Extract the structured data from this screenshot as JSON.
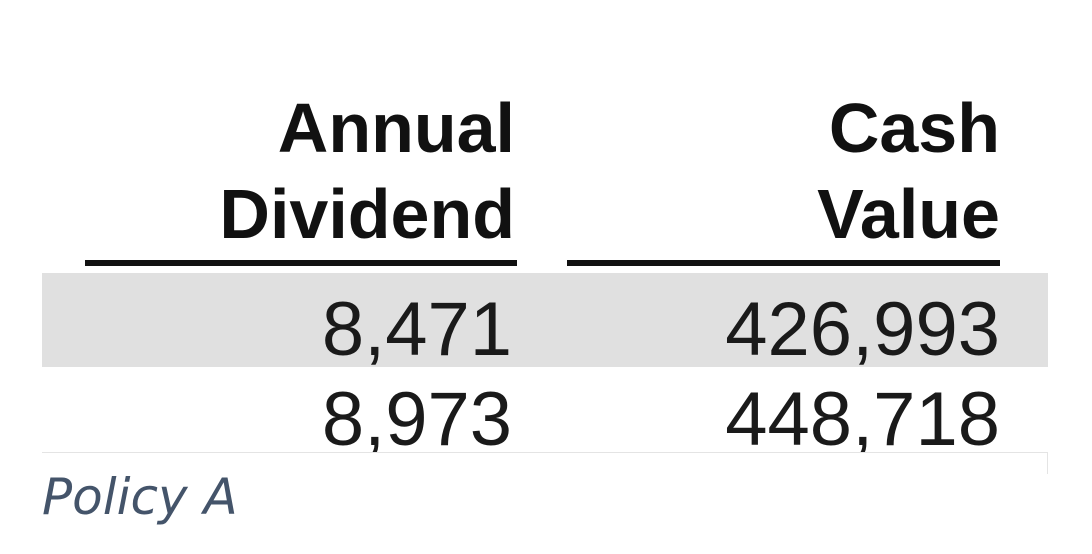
{
  "table": {
    "headers": [
      [
        "Annual",
        "Dividend"
      ],
      [
        "Cash",
        "Value"
      ]
    ],
    "rows": [
      [
        "8,471",
        "426,993"
      ],
      [
        "8,973",
        "448,718"
      ]
    ]
  },
  "caption": "Policy A"
}
